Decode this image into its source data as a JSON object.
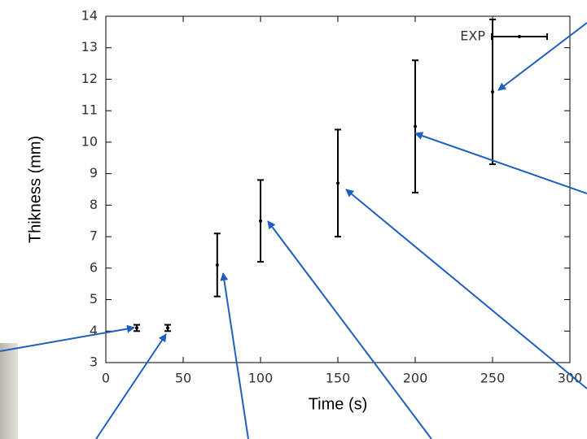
{
  "chart_data": {
    "type": "errorbar",
    "xlabel": "Time (s)",
    "ylabel": "Thikness (mm)",
    "x": [
      20,
      40,
      72,
      100,
      150,
      200,
      250
    ],
    "series": [
      {
        "name": "EXP",
        "color": "#000000",
        "values": [
          4.1,
          4.1,
          6.1,
          7.5,
          8.7,
          10.5,
          11.6
        ],
        "errors": [
          0.1,
          0.1,
          1.0,
          1.3,
          1.7,
          2.1,
          2.3
        ]
      }
    ],
    "xlim": [
      0,
      300
    ],
    "xticks": [
      0,
      50,
      100,
      150,
      200,
      250,
      300
    ],
    "ylim": [
      3,
      14
    ],
    "yticks": [
      3,
      4,
      5,
      6,
      7,
      8,
      9,
      10,
      11,
      12,
      13,
      14
    ],
    "legend": "upper right"
  }
}
